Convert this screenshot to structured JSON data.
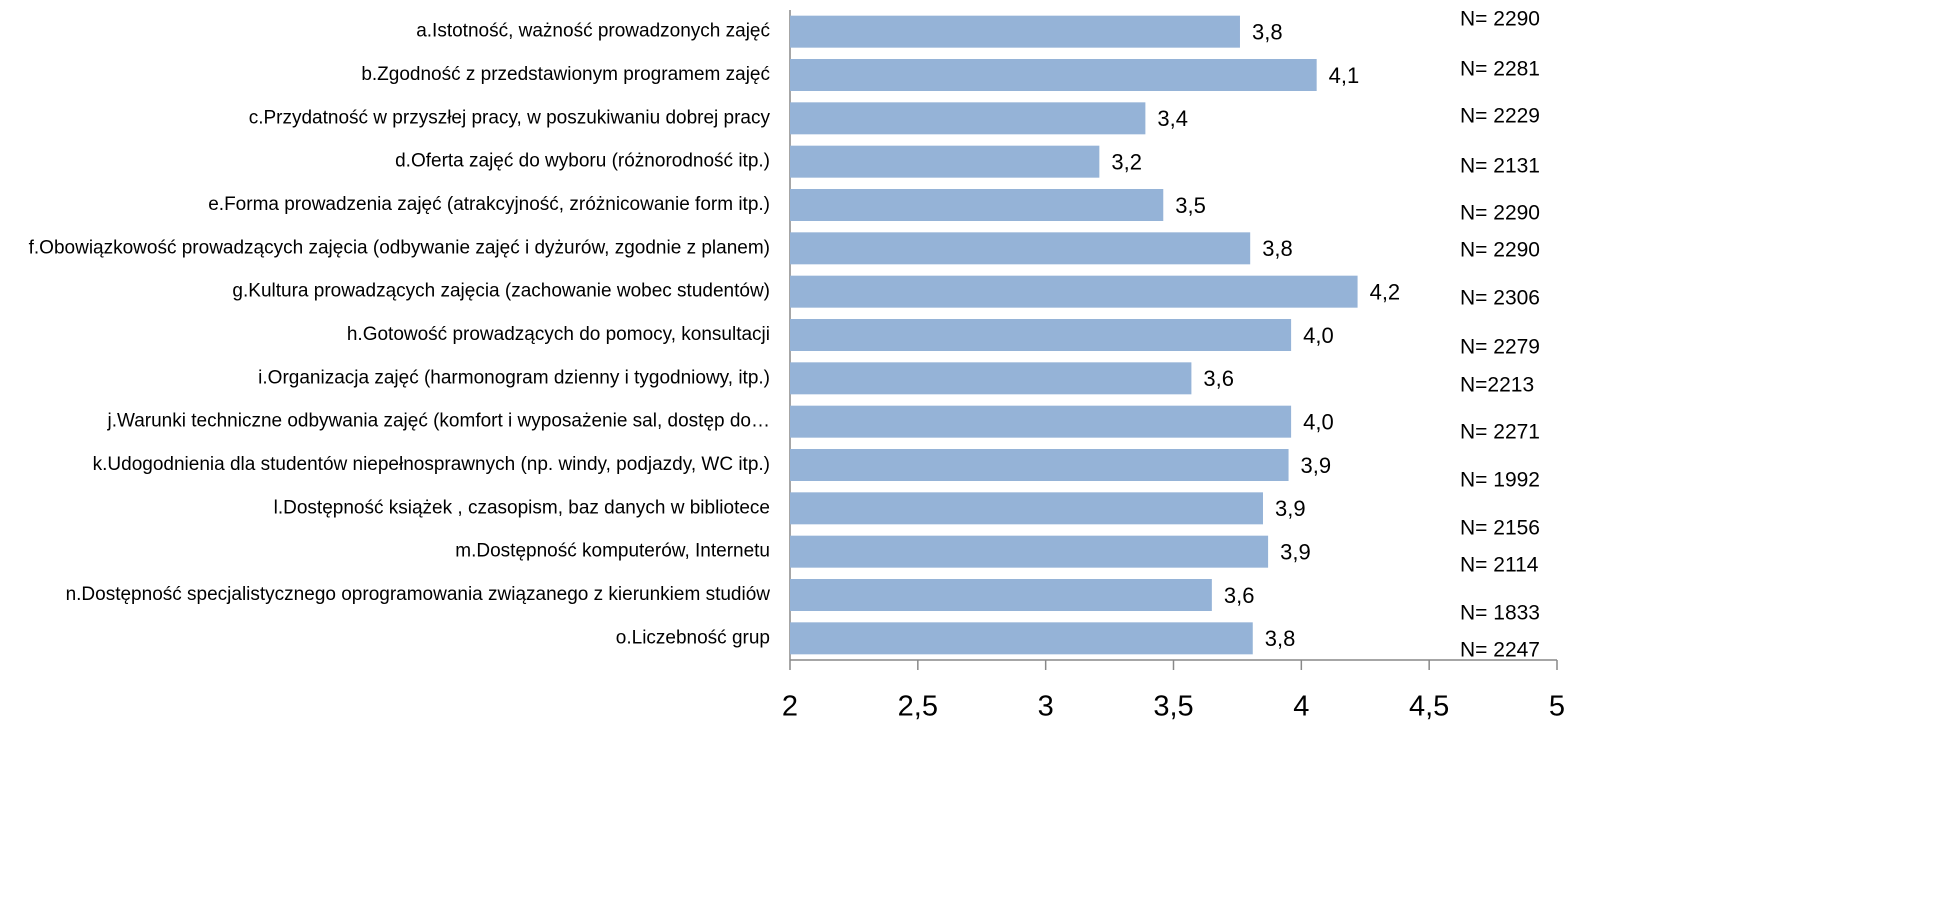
{
  "chart_data": {
    "type": "barh",
    "categories": [
      "a.Istotność, ważność prowadzonych zajęć",
      "b.Zgodność z przedstawionym programem zajęć",
      "c.Przydatność w przyszłej pracy, w poszukiwaniu dobrej pracy",
      "d.Oferta zajęć  do wyboru (różnorodność itp.)",
      "e.Forma prowadzenia zajęć (atrakcyjność, zróżnicowanie form itp.)",
      "f.Obowiązkowość prowadzących zajęcia (odbywanie zajęć i dyżurów, zgodnie z planem)",
      "g.Kultura prowadzących zajęcia (zachowanie wobec studentów)",
      "h.Gotowość prowadzących do pomocy, konsultacji",
      "i.Organizacja zajęć (harmonogram dzienny i tygodniowy, itp.)",
      "j.Warunki techniczne odbywania zajęć (komfort i wyposażenie sal, dostęp do…",
      "k.Udogodnienia dla studentów niepełnosprawnych (np. windy, podjazdy, WC itp.)",
      "l.Dostępność książek , czasopism, baz danych w bibliotece",
      "m.Dostępność komputerów, Internetu",
      "n.Dostępność specjalistycznego oprogramowania związanego z kierunkiem studiów",
      "o.Liczebność grup"
    ],
    "values": [
      3.76,
      4.06,
      3.39,
      3.21,
      3.46,
      3.8,
      4.22,
      3.96,
      3.57,
      3.96,
      3.95,
      3.85,
      3.87,
      3.65,
      3.81
    ],
    "value_labels": [
      "3,8",
      "4,1",
      "3,4",
      "3,2",
      "3,5",
      "3,8",
      "4,2",
      "4,0",
      "3,6",
      "4,0",
      "3,9",
      "3,9",
      "3,9",
      "3,6",
      "3,8"
    ],
    "annotations": [
      "N= 2290",
      "N= 2281",
      "N= 2229",
      "N= 2131",
      "N= 2290",
      "N= 2290",
      "N= 2306",
      "N= 2279",
      "N=2213",
      "N= 2271",
      "N= 1992",
      "N= 2156",
      "N= 2114",
      "N= 1833",
      "N= 2247"
    ],
    "color": "#95b3d7",
    "xlim": [
      2,
      5
    ],
    "xticks": [
      2,
      {
        "value": 2.5,
        "label": "2,5"
      },
      3,
      {
        "value": 3.5,
        "label": "3,5"
      },
      4,
      {
        "value": 4.5,
        "label": "4,5"
      },
      5
    ]
  }
}
